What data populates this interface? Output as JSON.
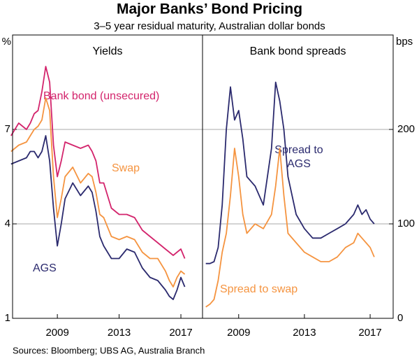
{
  "title": "Major Banks’ Bond Pricing",
  "subtitle": "3–5 year residual maturity, Australian dollar bonds",
  "source": "Sources: Bloomberg; UBS AG, Australia Branch",
  "chart_data": [
    {
      "type": "line",
      "title": "Yields",
      "y_unit": "%",
      "y_axis_side": "left",
      "xlim": [
        2006.1,
        2018.4
      ],
      "xticks": [
        2009,
        2013,
        2017
      ],
      "ylim": [
        1,
        10
      ],
      "yticks": [
        1,
        4,
        7
      ],
      "grid": true,
      "x": [
        2006,
        2006.5,
        2007,
        2007.25,
        2007.5,
        2007.75,
        2008,
        2008.25,
        2008.5,
        2008.75,
        2009,
        2009.25,
        2009.5,
        2010,
        2010.5,
        2011,
        2011.25,
        2011.5,
        2011.75,
        2012,
        2012.5,
        2013,
        2013.5,
        2014,
        2014.5,
        2015,
        2015.5,
        2016,
        2016.25,
        2016.5,
        2016.75,
        2017,
        2017.25
      ],
      "series": [
        {
          "name": "Bank bond (unsecured)",
          "color": "#d3246c",
          "values": [
            6.8,
            7.2,
            7.0,
            7.2,
            7.5,
            7.6,
            8.2,
            9.0,
            8.5,
            6.5,
            5.5,
            6.0,
            6.6,
            6.5,
            6.4,
            6.5,
            6.3,
            6.0,
            5.3,
            5.3,
            4.5,
            4.3,
            4.3,
            4.2,
            3.8,
            3.6,
            3.4,
            3.2,
            3.1,
            3.0,
            3.1,
            3.2,
            2.9
          ]
        },
        {
          "name": "Swap",
          "color": "#f59440",
          "values": [
            6.3,
            6.5,
            6.6,
            6.8,
            7.0,
            7.1,
            7.3,
            8.0,
            7.6,
            5.5,
            4.2,
            4.8,
            5.5,
            5.8,
            5.3,
            5.6,
            5.5,
            5.0,
            4.3,
            4.2,
            3.6,
            3.5,
            3.6,
            3.5,
            3.1,
            2.9,
            2.9,
            2.5,
            2.2,
            2.0,
            2.3,
            2.5,
            2.4
          ]
        },
        {
          "name": "AGS",
          "color": "#2b2a6e",
          "values": [
            5.9,
            6.0,
            6.1,
            6.3,
            6.3,
            6.1,
            6.3,
            6.8,
            6.0,
            4.5,
            3.3,
            4.0,
            4.8,
            5.3,
            4.9,
            5.2,
            5.0,
            4.4,
            3.6,
            3.3,
            2.9,
            2.9,
            3.2,
            3.1,
            2.6,
            2.3,
            2.2,
            1.9,
            1.7,
            1.6,
            1.9,
            2.3,
            2.0
          ]
        }
      ]
    },
    {
      "type": "line",
      "title": "Bank bond spreads",
      "y_unit": "bps",
      "y_axis_side": "right",
      "xlim": [
        2006.8,
        2018.4
      ],
      "xticks": [
        2009,
        2013,
        2017
      ],
      "ylim": [
        0,
        300
      ],
      "yticks": [
        0,
        100,
        200
      ],
      "grid": true,
      "x": [
        2007,
        2007.25,
        2007.5,
        2007.75,
        2008,
        2008.25,
        2008.5,
        2008.75,
        2009,
        2009.25,
        2009.5,
        2010,
        2010.5,
        2011,
        2011.25,
        2011.5,
        2011.75,
        2012,
        2012.5,
        2013,
        2013.5,
        2014,
        2014.5,
        2015,
        2015.5,
        2016,
        2016.25,
        2016.5,
        2016.75,
        2017,
        2017.25
      ],
      "series": [
        {
          "name": "Spread to AGS",
          "color": "#2b2a6e",
          "values": [
            58,
            58,
            60,
            75,
            120,
            200,
            245,
            210,
            220,
            190,
            150,
            140,
            120,
            180,
            250,
            230,
            200,
            150,
            110,
            95,
            85,
            85,
            90,
            95,
            100,
            110,
            120,
            110,
            115,
            105,
            100
          ]
        },
        {
          "name": "Spread to swap",
          "color": "#f59440",
          "values": [
            12,
            15,
            20,
            40,
            70,
            90,
            130,
            180,
            150,
            110,
            90,
            100,
            95,
            110,
            140,
            180,
            130,
            90,
            80,
            70,
            65,
            60,
            60,
            65,
            75,
            80,
            90,
            85,
            80,
            75,
            65
          ]
        }
      ]
    }
  ]
}
